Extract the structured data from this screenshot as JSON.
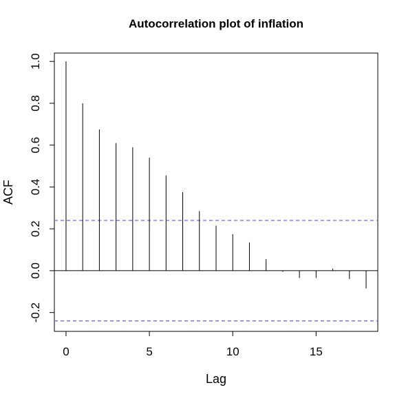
{
  "chart_data": {
    "type": "bar",
    "subtype": "acf-spike",
    "title": "Autocorrelation plot of inflation",
    "xlabel": "Lag",
    "ylabel": "ACF",
    "xlim": [
      -0.7,
      18.7
    ],
    "ylim": [
      -0.29,
      1.04
    ],
    "x_ticks": [
      0,
      5,
      10,
      15
    ],
    "y_ticks": [
      -0.2,
      0.0,
      0.2,
      0.4,
      0.6,
      0.8,
      1.0
    ],
    "y_tick_labels": [
      "-0.2",
      "0.0",
      "0.2",
      "0.4",
      "0.6",
      "0.8",
      "1.0"
    ],
    "x": [
      0,
      1,
      2,
      3,
      4,
      5,
      6,
      7,
      8,
      9,
      10,
      11,
      12,
      13,
      14,
      15,
      16,
      17,
      18
    ],
    "values": [
      1.0,
      0.8,
      0.675,
      0.61,
      0.59,
      0.54,
      0.455,
      0.375,
      0.285,
      0.215,
      0.175,
      0.135,
      0.055,
      -0.005,
      -0.035,
      -0.035,
      0.01,
      -0.04,
      -0.085
    ],
    "confidence_band": 0.24,
    "colors": {
      "spike": "#000000",
      "band": "#6b6bf0",
      "zero_line": "#000000"
    },
    "grid": false,
    "legend": "none"
  }
}
